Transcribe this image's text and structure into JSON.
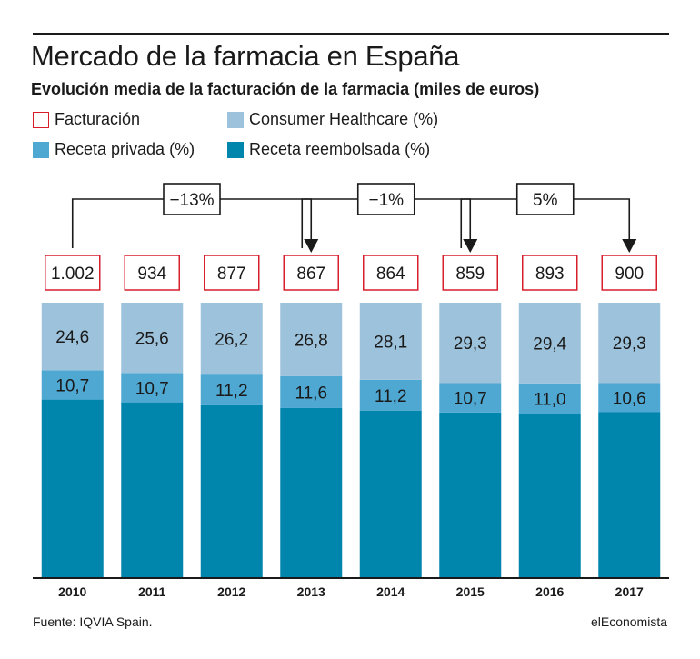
{
  "chart_data": {
    "type": "bar",
    "stacked": true,
    "title": "Mercado de la farmacia en España",
    "subtitle": "Evolución media de la facturación de la farmacia (miles de euros)",
    "categories": [
      "2010",
      "2011",
      "2012",
      "2013",
      "2014",
      "2015",
      "2016",
      "2017"
    ],
    "facturacion": {
      "name": "Facturación",
      "labels": [
        "1.002",
        "934",
        "877",
        "867",
        "864",
        "859",
        "893",
        "900"
      ],
      "values": [
        1002,
        934,
        877,
        867,
        864,
        859,
        893,
        900
      ]
    },
    "series": [
      {
        "name": "Receta reembolsada (%)",
        "color": "#0085ad",
        "values": [
          64.7,
          63.7,
          62.6,
          61.6,
          60.7,
          60.0,
          59.6,
          60.1
        ]
      },
      {
        "name": "Receta privada (%)",
        "color": "#4fa8d2",
        "values": [
          10.7,
          10.7,
          11.2,
          11.6,
          11.2,
          10.7,
          11.0,
          10.6
        ],
        "labels": [
          "10,7",
          "10,7",
          "11,2",
          "11,6",
          "11,2",
          "10,7",
          "11,0",
          "10,6"
        ]
      },
      {
        "name": "Consumer Healthcare (%)",
        "color": "#9dc2db",
        "values": [
          24.6,
          25.6,
          26.2,
          26.8,
          28.1,
          29.3,
          29.4,
          29.3
        ],
        "labels": [
          "24,6",
          "25,6",
          "26,2",
          "26,8",
          "28,1",
          "29,3",
          "29,4",
          "29,3"
        ]
      }
    ],
    "legend": [
      {
        "label": "Facturación",
        "style": "outline",
        "color": "#d71f2c"
      },
      {
        "label": "Consumer Healthcare (%)",
        "color": "#9dc2db"
      },
      {
        "label": "Receta privada (%)",
        "color": "#4fa8d2"
      },
      {
        "label": "Receta reembolsada (%)",
        "color": "#0085ad"
      }
    ],
    "changes": [
      {
        "label": "−13%",
        "from": "2010",
        "to": "2013"
      },
      {
        "label": "−1%",
        "from": "2013",
        "to": "2015"
      },
      {
        "label": "5%",
        "from": "2015",
        "to": "2017"
      }
    ],
    "ylim": [
      0,
      100
    ],
    "grid": false,
    "legend_position": "top-left"
  },
  "footer": {
    "source": "Fuente: IQVIA Spain.",
    "brand": "elEconomista"
  }
}
